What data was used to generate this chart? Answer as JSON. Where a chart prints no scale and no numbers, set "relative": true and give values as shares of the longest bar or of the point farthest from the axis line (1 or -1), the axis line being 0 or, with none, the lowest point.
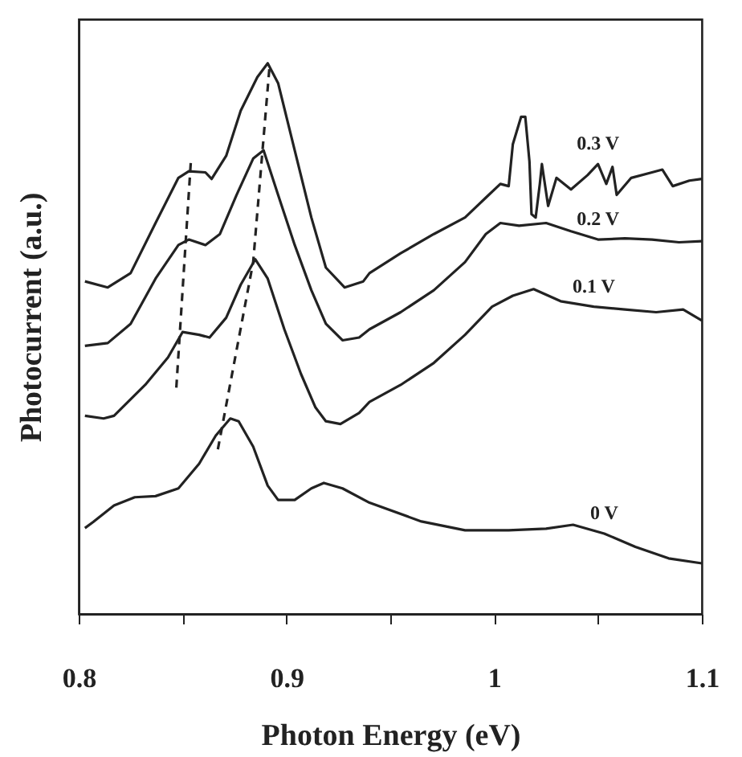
{
  "chart_data": {
    "type": "line",
    "xlabel": "Photon Energy (eV)",
    "ylabel": "Photocurrent (a.u.)",
    "relative": true,
    "xlim": [
      0.8,
      1.1
    ],
    "xticks": [
      0.8,
      {
        "value": 0.85,
        "label": null
      },
      0.9,
      {
        "value": 0.95,
        "label": null
      },
      1,
      {
        "value": 1.05,
        "label": null
      },
      1.1
    ],
    "marker": "none",
    "line_style": "solid",
    "series": [
      {
        "name": "0 V",
        "color": "#222222",
        "x": [
          0.803,
          0.807,
          0.817,
          0.827,
          0.837,
          0.848,
          0.858,
          0.866,
          0.873,
          0.877,
          0.884,
          0.891,
          0.896,
          0.904,
          0.912,
          0.918,
          0.927,
          0.94,
          0.965,
          0.986,
          1.007,
          1.025,
          1.038,
          1.053,
          1.068,
          1.084,
          1.1
        ],
        "values": [
          0.156,
          0.167,
          0.197,
          0.212,
          0.214,
          0.228,
          0.273,
          0.324,
          0.355,
          0.35,
          0.304,
          0.233,
          0.207,
          0.207,
          0.228,
          0.238,
          0.228,
          0.202,
          0.168,
          0.152,
          0.152,
          0.155,
          0.162,
          0.146,
          0.122,
          0.101,
          0.092
        ]
      },
      {
        "name": "0.1 V",
        "color": "#222222",
        "x": [
          0.803,
          0.812,
          0.817,
          0.832,
          0.843,
          0.85,
          0.858,
          0.863,
          0.871,
          0.878,
          0.885,
          0.891,
          0.899,
          0.907,
          0.914,
          0.919,
          0.926,
          0.935,
          0.94,
          0.955,
          0.971,
          0.986,
          0.999,
          1.009,
          1.019,
          1.032,
          1.048,
          1.063,
          1.078,
          1.091,
          1.1
        ],
        "values": [
          0.36,
          0.355,
          0.36,
          0.416,
          0.466,
          0.512,
          0.507,
          0.502,
          0.538,
          0.598,
          0.644,
          0.609,
          0.517,
          0.436,
          0.375,
          0.35,
          0.345,
          0.365,
          0.385,
          0.416,
          0.456,
          0.507,
          0.558,
          0.578,
          0.59,
          0.568,
          0.558,
          0.553,
          0.548,
          0.553,
          0.533
        ]
      },
      {
        "name": "0.2 V",
        "color": "#222222",
        "x": [
          0.803,
          0.814,
          0.825,
          0.837,
          0.848,
          0.853,
          0.861,
          0.868,
          0.876,
          0.884,
          0.889,
          0.896,
          0.904,
          0.912,
          0.919,
          0.927,
          0.935,
          0.94,
          0.955,
          0.971,
          0.986,
          0.996,
          1.003,
          1.012,
          1.025,
          1.037,
          1.05,
          1.063,
          1.076,
          1.089,
          1.1
        ],
        "values": [
          0.487,
          0.492,
          0.527,
          0.609,
          0.67,
          0.68,
          0.67,
          0.69,
          0.761,
          0.827,
          0.842,
          0.761,
          0.67,
          0.588,
          0.527,
          0.497,
          0.502,
          0.517,
          0.548,
          0.588,
          0.639,
          0.69,
          0.71,
          0.705,
          0.71,
          0.695,
          0.68,
          0.682,
          0.68,
          0.675,
          0.677
        ]
      },
      {
        "name": "0.3 V",
        "color": "#222222",
        "x": [
          0.803,
          0.814,
          0.825,
          0.837,
          0.848,
          0.853,
          0.861,
          0.864,
          0.871,
          0.878,
          0.886,
          0.891,
          0.896,
          0.904,
          0.912,
          0.919,
          0.928,
          0.937,
          0.94,
          0.955,
          0.971,
          0.986,
          0.996,
          1.003,
          1.007,
          1.009,
          1.013,
          1.015,
          1.017,
          1.018,
          1.02,
          1.022,
          1.023,
          1.026,
          1.03,
          1.037,
          1.045,
          1.05,
          1.054,
          1.057,
          1.059,
          1.066,
          1.076,
          1.081,
          1.086,
          1.094,
          1.1
        ],
        "values": [
          0.604,
          0.593,
          0.619,
          0.71,
          0.792,
          0.804,
          0.802,
          0.79,
          0.832,
          0.914,
          0.975,
          1.0,
          0.964,
          0.842,
          0.72,
          0.629,
          0.593,
          0.604,
          0.619,
          0.655,
          0.69,
          0.72,
          0.756,
          0.781,
          0.777,
          0.853,
          0.903,
          0.903,
          0.822,
          0.726,
          0.72,
          0.781,
          0.817,
          0.741,
          0.792,
          0.771,
          0.797,
          0.817,
          0.781,
          0.812,
          0.761,
          0.792,
          0.802,
          0.807,
          0.777,
          0.787,
          0.79
        ]
      },
      {
        "color": "#222222",
        "line_style": "dashed",
        "x": [
          0.847,
          0.854
        ],
        "values": [
          0.411,
          0.822
        ]
      },
      {
        "color": "#222222",
        "line_style": "dashed",
        "x": [
          0.867,
          0.884,
          0.892
        ],
        "values": [
          0.299,
          0.639,
          1.0
        ]
      }
    ]
  }
}
